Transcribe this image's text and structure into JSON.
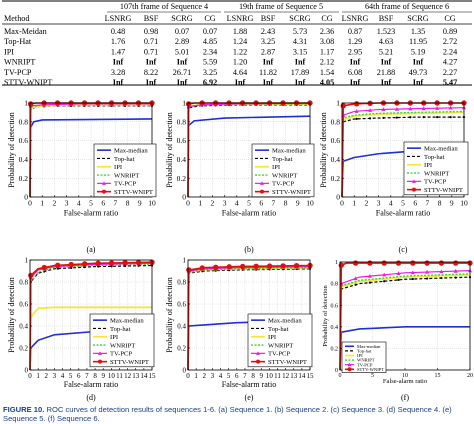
{
  "table": {
    "group_headers": [
      "107th frame of Sequence 4",
      "19th frame of Sequence 5",
      "64th frame of Sequence 6"
    ],
    "columns": [
      "Method",
      "LSNRG",
      "BSF",
      "SCRG",
      "CG",
      "LSNRG",
      "BSF",
      "SCRG",
      "CG",
      "LSNRG",
      "BSF",
      "SCRG",
      "CG"
    ],
    "rows": [
      [
        "Max-Meidan",
        "0.48",
        "0.98",
        "0.07",
        "0.07",
        "1.88",
        "2.43",
        "5.73",
        "2.36",
        "0.87",
        "1.523",
        "1.35",
        "0.89"
      ],
      [
        "Top-Hat",
        "1.76",
        "0.71",
        "2.89",
        "4.85",
        "1.24",
        "3.25",
        "4.31",
        "3.08",
        "1.29",
        "4.63",
        "11.95",
        "2.72"
      ],
      [
        "IPI",
        "1.47",
        "0.71",
        "5.01",
        "2.34",
        "1.22",
        "2.87",
        "3.15",
        "1.17",
        "2.95",
        "5.21",
        "5.19",
        "2.24"
      ],
      [
        "WNRIPT",
        "Inf",
        "Inf",
        "Inf",
        "5.59",
        "1.20",
        "Inf",
        "Inf",
        "2.12",
        "Inf",
        "Inf",
        "Inf",
        "4.27"
      ],
      [
        "TV-PCP",
        "3.28",
        "8.22",
        "26.71",
        "3.25",
        "4.64",
        "11.82",
        "17.89",
        "1.54",
        "6.08",
        "21.88",
        "49.73",
        "2.27"
      ],
      [
        "STTV-WNIPT",
        "Inf",
        "Inf",
        "Inf",
        "6.92",
        "Inf",
        "Inf",
        "Inf",
        "4.05",
        "Inf",
        "Inf",
        "Inf",
        "5.47"
      ]
    ],
    "bold_cells": [
      [
        5,
        4
      ],
      [
        5,
        8
      ],
      [
        5,
        12
      ]
    ]
  },
  "axis_labels": {
    "ylabel": "Probability of detection",
    "xlabel": "False-alarm ratio"
  },
  "sub_labels": [
    "(a)",
    "(b)",
    "(c)",
    "(d)",
    "(e)",
    "(f)"
  ],
  "legend_entries": [
    "Max-median",
    "Top-hat",
    "IPI",
    "WNRIPT",
    "TV-PCP",
    "STTV-WNIPT"
  ],
  "colors": {
    "max_median": "#1f2fd0",
    "top_hat": "#000000",
    "ipi": "#f5e83a",
    "wnript": "#39d639",
    "tv_pcp": "#e81ee8",
    "sttv_wnipt": "#e01010",
    "caption": "#1a3f8c"
  },
  "chart_data": [
    {
      "type": "line",
      "label": "(a)",
      "xlim": [
        0,
        10
      ],
      "ylim": [
        0,
        1
      ],
      "xticks": [
        "0",
        "1",
        "2",
        "3",
        "4",
        "5",
        "6",
        "7",
        "8",
        "9",
        "10"
      ],
      "yticks": [
        "0",
        "0.2",
        "0.4",
        "0.6",
        "0.8",
        "1"
      ],
      "xlabel": "False-alarm ratio",
      "ylabel": "Probability of detection",
      "legend_position": "center-right",
      "series": [
        {
          "name": "Max-median",
          "x": [
            0,
            0.05,
            0.3,
            1,
            10
          ],
          "y": [
            0,
            0.74,
            0.8,
            0.82,
            0.83
          ]
        },
        {
          "name": "Top-hat",
          "x": [
            0,
            0.05,
            0.5,
            2,
            10
          ],
          "y": [
            0,
            0.93,
            0.96,
            0.97,
            0.97
          ]
        },
        {
          "name": "IPI",
          "x": [
            0,
            0.05,
            1,
            3,
            10
          ],
          "y": [
            0,
            0.95,
            0.97,
            0.98,
            0.98
          ]
        },
        {
          "name": "WNRIPT",
          "x": [
            0,
            0.05,
            1,
            3,
            10
          ],
          "y": [
            0,
            0.96,
            0.98,
            0.99,
            0.99
          ]
        },
        {
          "name": "TV-PCP",
          "x": [
            0,
            0.05,
            1,
            4,
            10
          ],
          "y": [
            0,
            0.97,
            0.98,
            0.99,
            0.99
          ]
        },
        {
          "name": "STTV-WNIPT",
          "x": [
            0,
            0.05,
            0.5,
            10
          ],
          "y": [
            0,
            0.99,
            1.0,
            1.0
          ]
        }
      ]
    },
    {
      "type": "line",
      "label": "(b)",
      "xlim": [
        0,
        10
      ],
      "ylim": [
        0,
        1
      ],
      "xticks": [
        "0",
        "1",
        "2",
        "3",
        "4",
        "5",
        "6",
        "7",
        "8",
        "9",
        "10"
      ],
      "yticks": [
        "0",
        "0.2",
        "0.4",
        "0.6",
        "0.8",
        "1"
      ],
      "xlabel": "False-alarm ratio",
      "ylabel": "Probability of detection",
      "legend_position": "center-right",
      "series": [
        {
          "name": "Max-median",
          "x": [
            0,
            0.05,
            0.5,
            3,
            10
          ],
          "y": [
            0,
            0.76,
            0.81,
            0.84,
            0.86
          ]
        },
        {
          "name": "Top-hat",
          "x": [
            0,
            0.05,
            1,
            4,
            10
          ],
          "y": [
            0,
            0.95,
            0.97,
            0.98,
            0.98
          ]
        },
        {
          "name": "IPI",
          "x": [
            0,
            0.05,
            1,
            4,
            10
          ],
          "y": [
            0,
            0.97,
            0.98,
            0.99,
            0.99
          ]
        },
        {
          "name": "WNRIPT",
          "x": [
            0,
            0.05,
            1,
            4,
            10
          ],
          "y": [
            0,
            0.96,
            0.98,
            0.99,
            0.99
          ]
        },
        {
          "name": "TV-PCP",
          "x": [
            0,
            0.05,
            1,
            4,
            10
          ],
          "y": [
            0,
            0.96,
            0.98,
            0.99,
            1.0
          ]
        },
        {
          "name": "STTV-WNIPT",
          "x": [
            0,
            0.05,
            0.5,
            10
          ],
          "y": [
            0,
            0.99,
            1.0,
            1.0
          ]
        }
      ]
    },
    {
      "type": "line",
      "label": "(c)",
      "xlim": [
        0,
        10
      ],
      "ylim": [
        0,
        1
      ],
      "xticks": [
        "0",
        "1",
        "2",
        "3",
        "4",
        "5",
        "6",
        "7",
        "8",
        "9",
        "10"
      ],
      "yticks": [
        "0",
        "0.2",
        "0.4",
        "0.6",
        "0.8",
        "1"
      ],
      "xlabel": "False-alarm ratio",
      "ylabel": "Probability of detection",
      "legend_position": "center-right",
      "series": [
        {
          "name": "Max-median",
          "x": [
            0,
            0.1,
            1,
            3,
            6,
            10
          ],
          "y": [
            0,
            0.38,
            0.42,
            0.46,
            0.49,
            0.5
          ]
        },
        {
          "name": "Top-hat",
          "x": [
            0,
            0.1,
            1,
            3,
            6,
            10
          ],
          "y": [
            0,
            0.8,
            0.83,
            0.84,
            0.85,
            0.85
          ]
        },
        {
          "name": "IPI",
          "x": [
            0,
            0.1,
            1,
            3,
            6,
            10
          ],
          "y": [
            0,
            0.82,
            0.86,
            0.88,
            0.89,
            0.9
          ]
        },
        {
          "name": "WNRIPT",
          "x": [
            0,
            0.1,
            1,
            3,
            6,
            10
          ],
          "y": [
            0,
            0.84,
            0.87,
            0.89,
            0.9,
            0.91
          ]
        },
        {
          "name": "TV-PCP",
          "x": [
            0,
            0.1,
            1,
            3,
            6,
            10
          ],
          "y": [
            0,
            0.87,
            0.91,
            0.93,
            0.94,
            0.95
          ]
        },
        {
          "name": "STTV-WNIPT",
          "x": [
            0,
            0.1,
            1,
            3,
            10
          ],
          "y": [
            0,
            0.97,
            0.99,
            1.0,
            1.0
          ]
        }
      ]
    },
    {
      "type": "line",
      "label": "(d)",
      "xlim": [
        0,
        15
      ],
      "ylim": [
        0,
        1
      ],
      "xticks": [
        "0",
        "1",
        "2",
        "3",
        "4",
        "5",
        "6",
        "7",
        "8",
        "9",
        "10",
        "11",
        "12",
        "13",
        "14",
        "15"
      ],
      "yticks": [
        "0",
        "0.2",
        "0.4",
        "0.6",
        "0.8",
        "1"
      ],
      "xlabel": "False-alarm ratio",
      "ylabel": "Probability of detection",
      "legend_position": "center-right",
      "series": [
        {
          "name": "Max-median",
          "x": [
            0,
            0.1,
            1,
            3,
            8,
            15
          ],
          "y": [
            0,
            0.2,
            0.27,
            0.32,
            0.35,
            0.36
          ]
        },
        {
          "name": "Top-hat",
          "x": [
            0,
            0.1,
            1,
            3,
            8,
            15
          ],
          "y": [
            0,
            0.8,
            0.88,
            0.92,
            0.94,
            0.95
          ]
        },
        {
          "name": "IPI",
          "x": [
            0,
            0.1,
            1,
            3,
            15
          ],
          "y": [
            0,
            0.48,
            0.56,
            0.57,
            0.57
          ]
        },
        {
          "name": "WNRIPT",
          "x": [
            0,
            0.1,
            1,
            3,
            8,
            15
          ],
          "y": [
            0,
            0.8,
            0.89,
            0.93,
            0.95,
            0.96
          ]
        },
        {
          "name": "TV-PCP",
          "x": [
            0,
            0.1,
            1,
            3,
            8,
            15
          ],
          "y": [
            0,
            0.84,
            0.91,
            0.94,
            0.96,
            0.97
          ]
        },
        {
          "name": "STTV-WNIPT",
          "x": [
            0,
            0.1,
            1,
            3,
            8,
            15
          ],
          "y": [
            0,
            0.86,
            0.92,
            0.95,
            0.97,
            0.98
          ]
        }
      ]
    },
    {
      "type": "line",
      "label": "(e)",
      "xlim": [
        0,
        15
      ],
      "ylim": [
        0,
        1
      ],
      "xticks": [
        "0",
        "1",
        "2",
        "3",
        "4",
        "5",
        "6",
        "7",
        "8",
        "9",
        "10",
        "11",
        "12",
        "13",
        "14",
        "15"
      ],
      "yticks": [
        "0",
        "0.2",
        "0.4",
        "0.6",
        "0.8",
        "1"
      ],
      "xlabel": "False-alarm ratio",
      "ylabel": "Probability of detection",
      "legend_position": "center-right",
      "series": [
        {
          "name": "Max-median",
          "x": [
            0,
            0.1,
            2,
            6,
            15
          ],
          "y": [
            0,
            0.4,
            0.41,
            0.43,
            0.45
          ]
        },
        {
          "name": "Top-hat",
          "x": [
            0,
            0.1,
            2,
            6,
            15
          ],
          "y": [
            0,
            0.88,
            0.9,
            0.91,
            0.92
          ]
        },
        {
          "name": "IPI",
          "x": [
            0,
            0.1,
            2,
            6,
            15
          ],
          "y": [
            0,
            0.89,
            0.91,
            0.92,
            0.93
          ]
        },
        {
          "name": "WNRIPT",
          "x": [
            0,
            0.1,
            2,
            6,
            15
          ],
          "y": [
            0,
            0.89,
            0.91,
            0.92,
            0.93
          ]
        },
        {
          "name": "TV-PCP",
          "x": [
            0,
            0.1,
            2,
            6,
            15
          ],
          "y": [
            0,
            0.9,
            0.92,
            0.93,
            0.94
          ]
        },
        {
          "name": "STTV-WNIPT",
          "x": [
            0,
            0.1,
            2,
            6,
            15
          ],
          "y": [
            0,
            0.91,
            0.93,
            0.94,
            0.95
          ]
        }
      ]
    },
    {
      "type": "line",
      "label": "(f)",
      "xlim": [
        0,
        20
      ],
      "ylim": [
        0,
        1
      ],
      "xticks": [
        "0",
        "5",
        "10",
        "15",
        "20"
      ],
      "yticks": [
        "0",
        "0.2",
        "0.4",
        "0.6",
        "0.8",
        "1"
      ],
      "xlabel": "False-alarm ratio",
      "ylabel": "Probability of detection",
      "legend_position": "lower-left",
      "series": [
        {
          "name": "Max-median",
          "x": [
            0,
            0.2,
            3,
            10,
            20
          ],
          "y": [
            0,
            0.35,
            0.38,
            0.4,
            0.4
          ]
        },
        {
          "name": "Top-hat",
          "x": [
            0,
            0.2,
            3,
            10,
            20
          ],
          "y": [
            0,
            0.75,
            0.8,
            0.84,
            0.86
          ]
        },
        {
          "name": "IPI",
          "x": [
            0,
            0.2,
            3,
            10,
            20
          ],
          "y": [
            0,
            0.77,
            0.82,
            0.86,
            0.88
          ]
        },
        {
          "name": "WNRIPT",
          "x": [
            0,
            0.2,
            3,
            10,
            20
          ],
          "y": [
            0,
            0.78,
            0.83,
            0.87,
            0.89
          ]
        },
        {
          "name": "TV-PCP",
          "x": [
            0,
            0.2,
            3,
            10,
            20
          ],
          "y": [
            0,
            0.8,
            0.86,
            0.9,
            0.92
          ]
        },
        {
          "name": "STTV-WNIPT",
          "x": [
            0,
            0.2,
            1,
            20
          ],
          "y": [
            0,
            0.97,
            0.99,
            0.99
          ]
        }
      ]
    }
  ],
  "caption": {
    "label": "FIGURE 10.",
    "text": "ROC curves of detection results of sequences 1-6. (a) Sequence 1. (b) Sequence 2. (c) Sequence 3. (d) Sequence 4. (e) Sequence 5. (f) Sequence 6."
  }
}
